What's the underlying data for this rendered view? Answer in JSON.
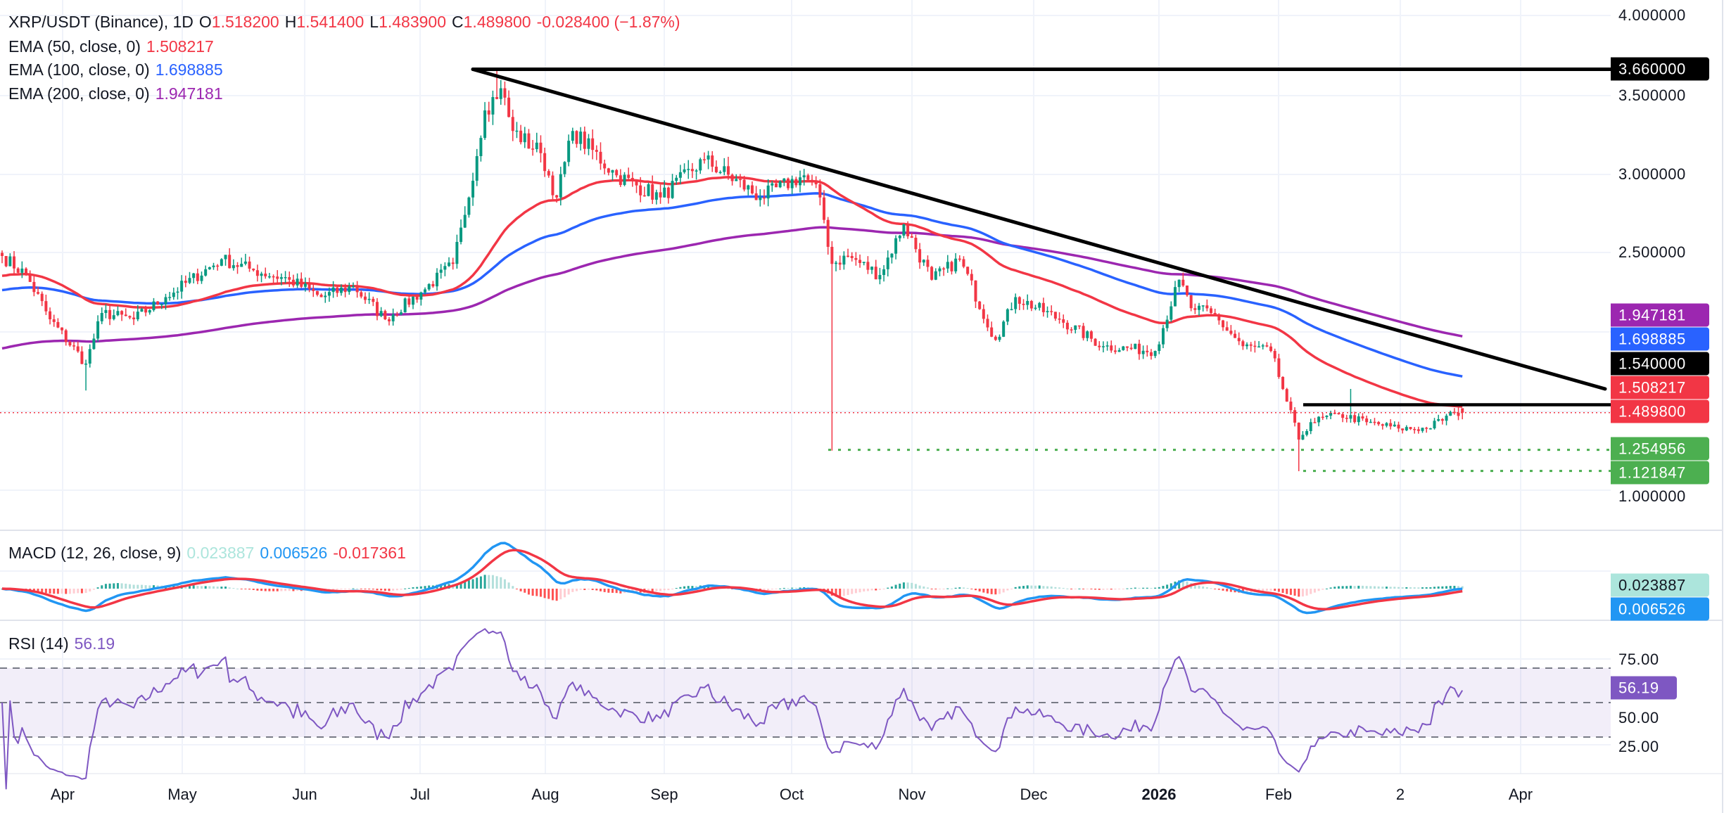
{
  "header": {
    "symbol": "XRP/USDT (Binance), 1D",
    "o_label": "O",
    "o": "1.518200",
    "h_label": "H",
    "h": "1.541400",
    "l_label": "L",
    "l": "1.483900",
    "c_label": "C",
    "c": "1.489800",
    "change": "-0.028400 (−1.87%)"
  },
  "indicators": {
    "ema50": {
      "label": "EMA (50, close, 0)",
      "value": "1.508217",
      "color": "#f23645"
    },
    "ema100": {
      "label": "EMA (100, close, 0)",
      "value": "1.698885",
      "color": "#2962ff"
    },
    "ema200": {
      "label": "EMA (200, close, 0)",
      "value": "1.947181",
      "color": "#9c27b0"
    },
    "macd": {
      "label": "MACD (12, 26, close, 9)",
      "hist": "0.023887",
      "macd": "0.006526",
      "signal": "-0.017361"
    },
    "rsi": {
      "label": "RSI (14)",
      "value": "56.19"
    }
  },
  "price_axis": [
    "4.000000",
    "3.500000",
    "3.000000",
    "2.500000",
    "1.000000"
  ],
  "price_tags": {
    "resistance_top": "3.660000",
    "ema200": "1.947181",
    "ema100": "1.698885",
    "resistance_mid": "1.540000",
    "ema50": "1.508217",
    "last": "1.489800",
    "support_1": "1.254956",
    "support_2": "1.121847"
  },
  "macd_axis": {
    "hist": "0.023887",
    "macd": "0.006526"
  },
  "rsi_axis": {
    "upper": "75.00",
    "lower": "25.00",
    "value": "56.19",
    "mid": "50.00"
  },
  "time_axis": [
    "Apr",
    "May",
    "Jun",
    "Jul",
    "Aug",
    "Sep",
    "Oct",
    "Nov",
    "Dec",
    "2026",
    "Feb",
    "2",
    "Apr"
  ],
  "colors": {
    "up": "#089981",
    "down": "#f23645",
    "rsi": "#7e57c2",
    "macd": "#2196f3",
    "signal": "#f23645",
    "support": "#4caf50"
  },
  "chart_data": {
    "type": "candlestick",
    "title": "XRP/USDT (Binance), 1D",
    "ylim": [
      0.95,
      4.0
    ],
    "close_keypoints_day_price": [
      [
        0,
        2.48
      ],
      [
        6,
        2.36
      ],
      [
        12,
        2.08
      ],
      [
        21,
        1.8
      ],
      [
        25,
        2.12
      ],
      [
        33,
        2.08
      ],
      [
        41,
        2.22
      ],
      [
        55,
        2.46
      ],
      [
        63,
        2.39
      ],
      [
        72,
        2.33
      ],
      [
        80,
        2.22
      ],
      [
        88,
        2.29
      ],
      [
        96,
        2.08
      ],
      [
        105,
        2.25
      ],
      [
        113,
        2.43
      ],
      [
        116,
        2.74
      ],
      [
        121,
        3.4
      ],
      [
        125,
        3.54
      ],
      [
        128,
        3.27
      ],
      [
        135,
        3.13
      ],
      [
        139,
        2.85
      ],
      [
        143,
        3.27
      ],
      [
        154,
        2.99
      ],
      [
        165,
        2.85
      ],
      [
        176,
        3.09
      ],
      [
        190,
        2.85
      ],
      [
        201,
        2.99
      ],
      [
        205,
        2.85
      ],
      [
        208,
        2.43
      ],
      [
        212,
        2.48
      ],
      [
        220,
        2.36
      ],
      [
        226,
        2.68
      ],
      [
        233,
        2.33
      ],
      [
        240,
        2.46
      ],
      [
        249,
        1.95
      ],
      [
        254,
        2.22
      ],
      [
        265,
        2.08
      ],
      [
        276,
        1.91
      ],
      [
        289,
        1.88
      ],
      [
        295,
        2.33
      ],
      [
        298,
        2.15
      ],
      [
        303,
        2.12
      ],
      [
        311,
        1.91
      ],
      [
        318,
        1.88
      ],
      [
        322,
        1.56
      ],
      [
        325,
        1.32
      ],
      [
        328,
        1.43
      ],
      [
        335,
        1.48
      ],
      [
        342,
        1.43
      ],
      [
        350,
        1.39
      ],
      [
        357,
        1.39
      ],
      [
        364,
        1.49
      ],
      [
        366,
        1.4898
      ]
    ],
    "wick_events": [
      {
        "day": 21,
        "low": 1.63
      },
      {
        "day": 124,
        "high": 3.66
      },
      {
        "day": 208,
        "low": 1.25
      },
      {
        "day": 325,
        "low": 1.12
      },
      {
        "day": 338,
        "high": 1.64
      },
      {
        "day": 365,
        "high": 1.5414
      }
    ],
    "ema_seeds": {
      "ema50": 2.35,
      "ema100": 2.26,
      "ema200": 1.89
    },
    "horizontal_levels": [
      3.66,
      1.54,
      1.254956,
      1.121847,
      1.4898
    ],
    "trendline": [
      {
        "day": 118,
        "price": 3.66
      },
      {
        "day": 402,
        "price": 1.55
      }
    ],
    "rsi_levels": [
      70,
      50,
      30
    ]
  }
}
